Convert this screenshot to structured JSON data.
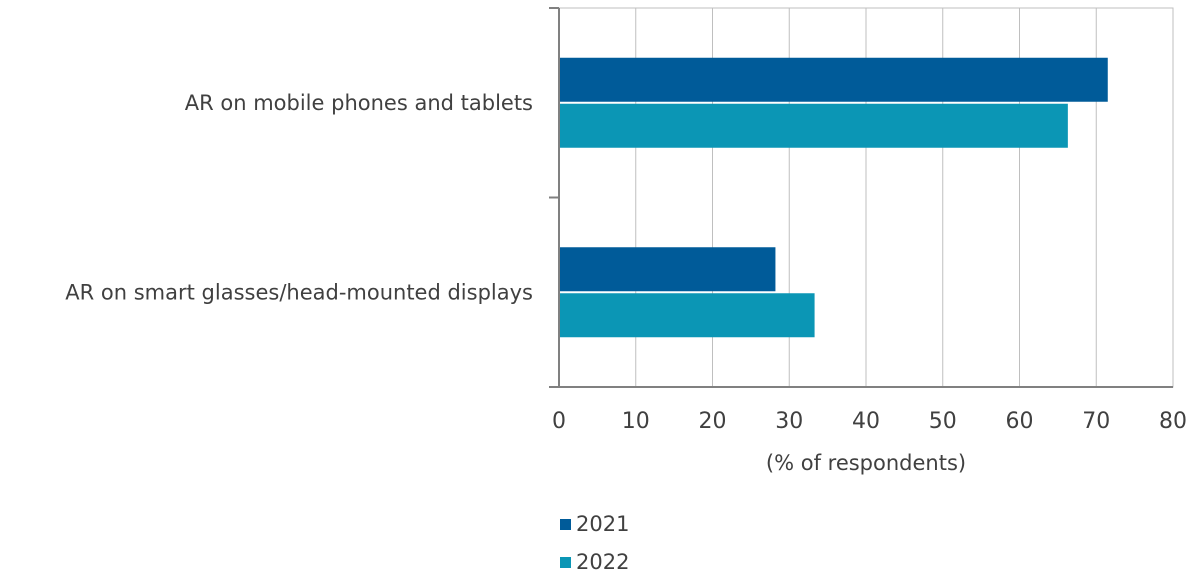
{
  "chart_data": {
    "type": "bar",
    "orientation": "horizontal",
    "categories": [
      "AR on mobile phones and tablets",
      "AR on smart glasses/head-mounted displays"
    ],
    "series": [
      {
        "name": "2021",
        "color": "#005B99",
        "values": [
          71.5,
          28.2
        ]
      },
      {
        "name": "2022",
        "color": "#0B96B5",
        "values": [
          66.3,
          33.3
        ]
      }
    ],
    "xlabel": "(% of respondents)",
    "ylabel": "",
    "xlim": [
      0,
      80
    ],
    "xticks": [
      0,
      10,
      20,
      30,
      40,
      50,
      60,
      70,
      80
    ],
    "grid": "vertical",
    "legend_position": "bottom"
  }
}
